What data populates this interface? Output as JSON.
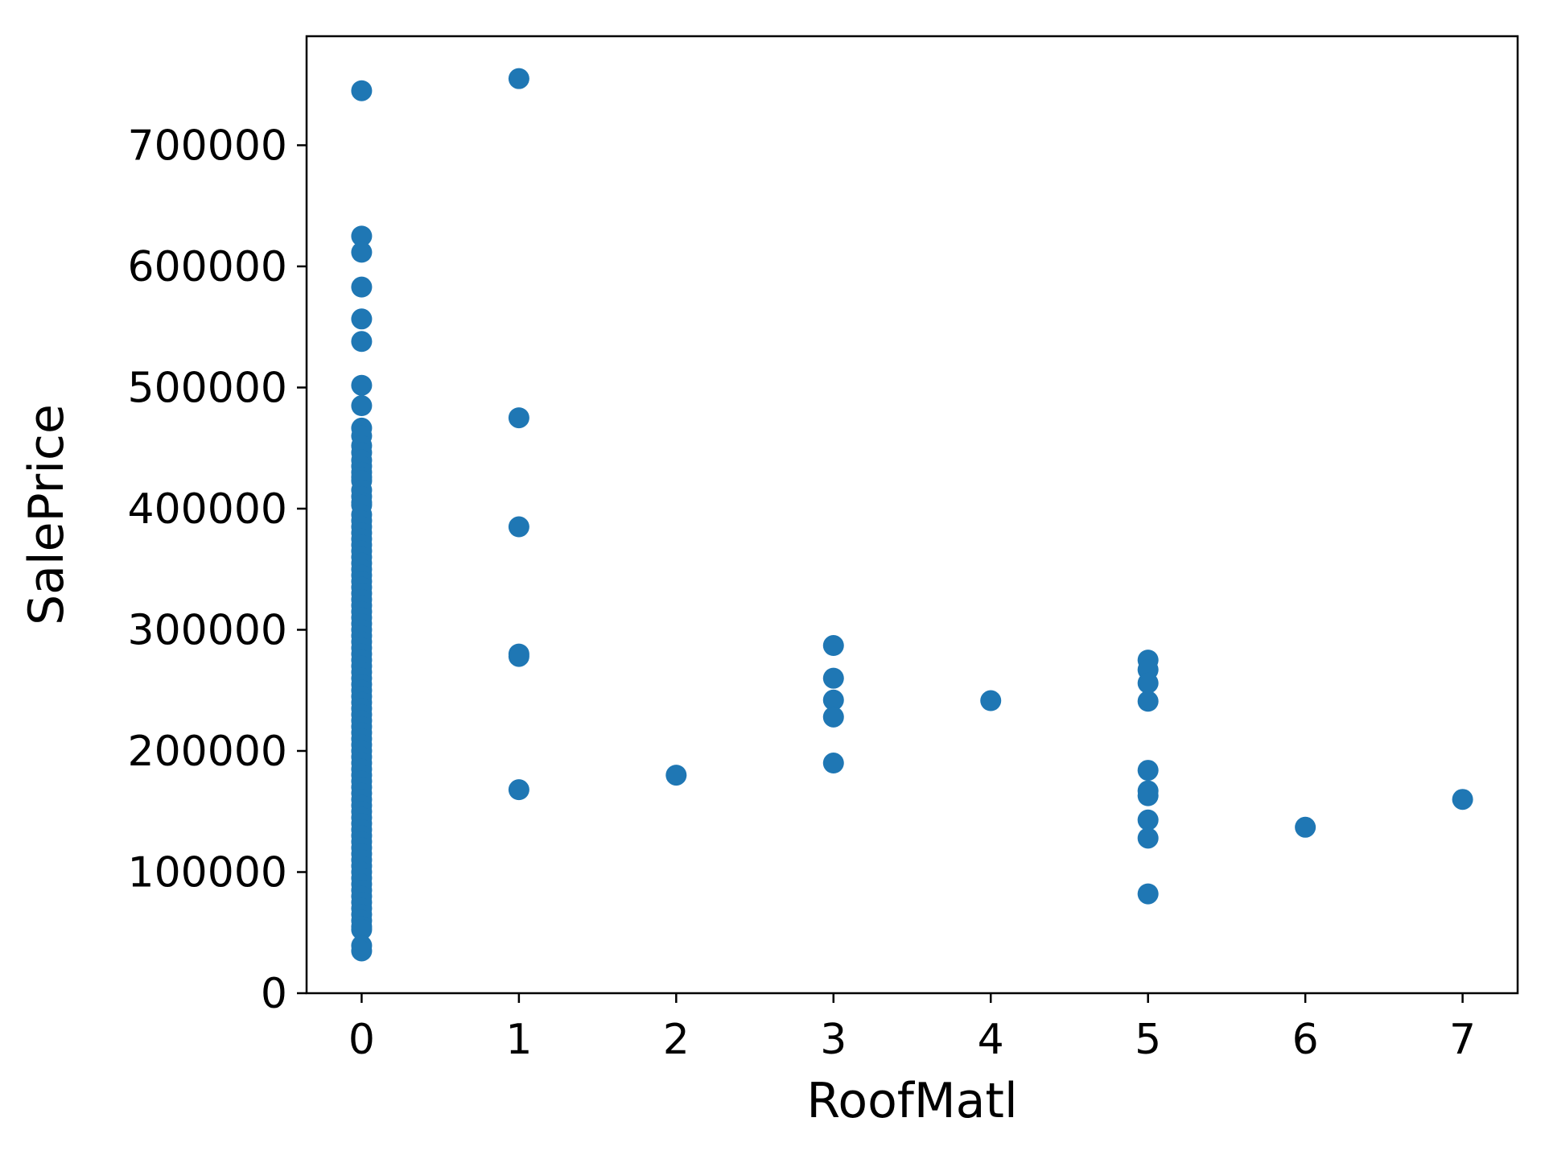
{
  "chart_data": {
    "type": "scatter",
    "title": "",
    "xlabel": "RoofMatl",
    "ylabel": "SalePrice",
    "xlim": [
      -0.35,
      7.35
    ],
    "ylim": [
      0,
      790000
    ],
    "xticks": [
      0,
      1,
      2,
      3,
      4,
      5,
      6,
      7
    ],
    "xtick_labels": [
      "0",
      "1",
      "2",
      "3",
      "4",
      "5",
      "6",
      "7"
    ],
    "yticks": [
      0,
      100000,
      200000,
      300000,
      400000,
      500000,
      600000,
      700000
    ],
    "ytick_labels": [
      "0",
      "100000",
      "200000",
      "300000",
      "400000",
      "500000",
      "600000",
      "700000"
    ],
    "grid": false,
    "colors": {
      "marker": "#1f77b4",
      "axes": "#000000",
      "background": "#ffffff"
    },
    "series": [
      {
        "x": [
          0,
          0,
          0,
          0,
          0,
          0,
          0,
          0,
          0,
          0,
          0,
          0,
          0,
          0,
          0,
          0,
          0,
          0,
          0,
          0,
          0,
          0,
          0,
          0,
          0,
          0,
          0,
          0,
          0,
          0,
          0,
          0,
          0,
          0,
          0,
          0,
          0,
          0,
          0,
          0,
          0,
          0,
          0,
          0,
          0,
          0,
          0,
          0,
          0,
          0,
          0,
          0,
          0,
          0,
          0,
          0,
          0,
          0,
          0,
          0,
          0,
          0,
          0,
          0,
          0,
          0,
          0,
          0,
          0,
          0,
          0,
          0,
          0,
          0,
          0,
          0,
          0,
          0,
          0,
          0,
          0,
          0,
          0,
          0,
          0,
          0,
          0,
          0,
          0,
          0,
          0,
          0,
          0,
          1,
          1,
          1,
          1,
          1,
          1,
          2,
          3,
          3,
          3,
          3,
          3,
          4,
          5,
          5,
          5,
          5,
          5,
          5,
          5,
          5,
          5,
          5,
          6,
          7
        ],
        "y": [
          745000,
          625000,
          611657,
          582933,
          556581,
          538000,
          501837,
          485000,
          466500,
          460000,
          451950,
          446261,
          440000,
          435000,
          430000,
          426000,
          423000,
          415298,
          410000,
          405000,
          402861,
          395000,
          390000,
          385000,
          380000,
          375000,
          370000,
          365000,
          360000,
          355000,
          350000,
          345000,
          340000,
          335000,
          330000,
          325000,
          320000,
          315000,
          310000,
          305000,
          300000,
          295000,
          290000,
          285000,
          280000,
          275000,
          270000,
          265000,
          260000,
          255000,
          250000,
          245000,
          240000,
          235000,
          230000,
          225000,
          220000,
          215000,
          210000,
          205000,
          200000,
          195000,
          190000,
          185000,
          180000,
          175000,
          170000,
          165000,
          160000,
          155000,
          150000,
          145000,
          140000,
          135000,
          130000,
          125000,
          120000,
          115000,
          110000,
          105000,
          100000,
          95000,
          90000,
          85000,
          80000,
          75000,
          70000,
          65000,
          60000,
          55000,
          52500,
          39300,
          34900,
          755000,
          475000,
          385000,
          280000,
          278000,
          168000,
          180000,
          287000,
          260000,
          242000,
          228000,
          190000,
          241500,
          275000,
          267000,
          256000,
          241000,
          184000,
          167000,
          163000,
          143000,
          128000,
          82000,
          137000,
          160000
        ]
      }
    ]
  }
}
